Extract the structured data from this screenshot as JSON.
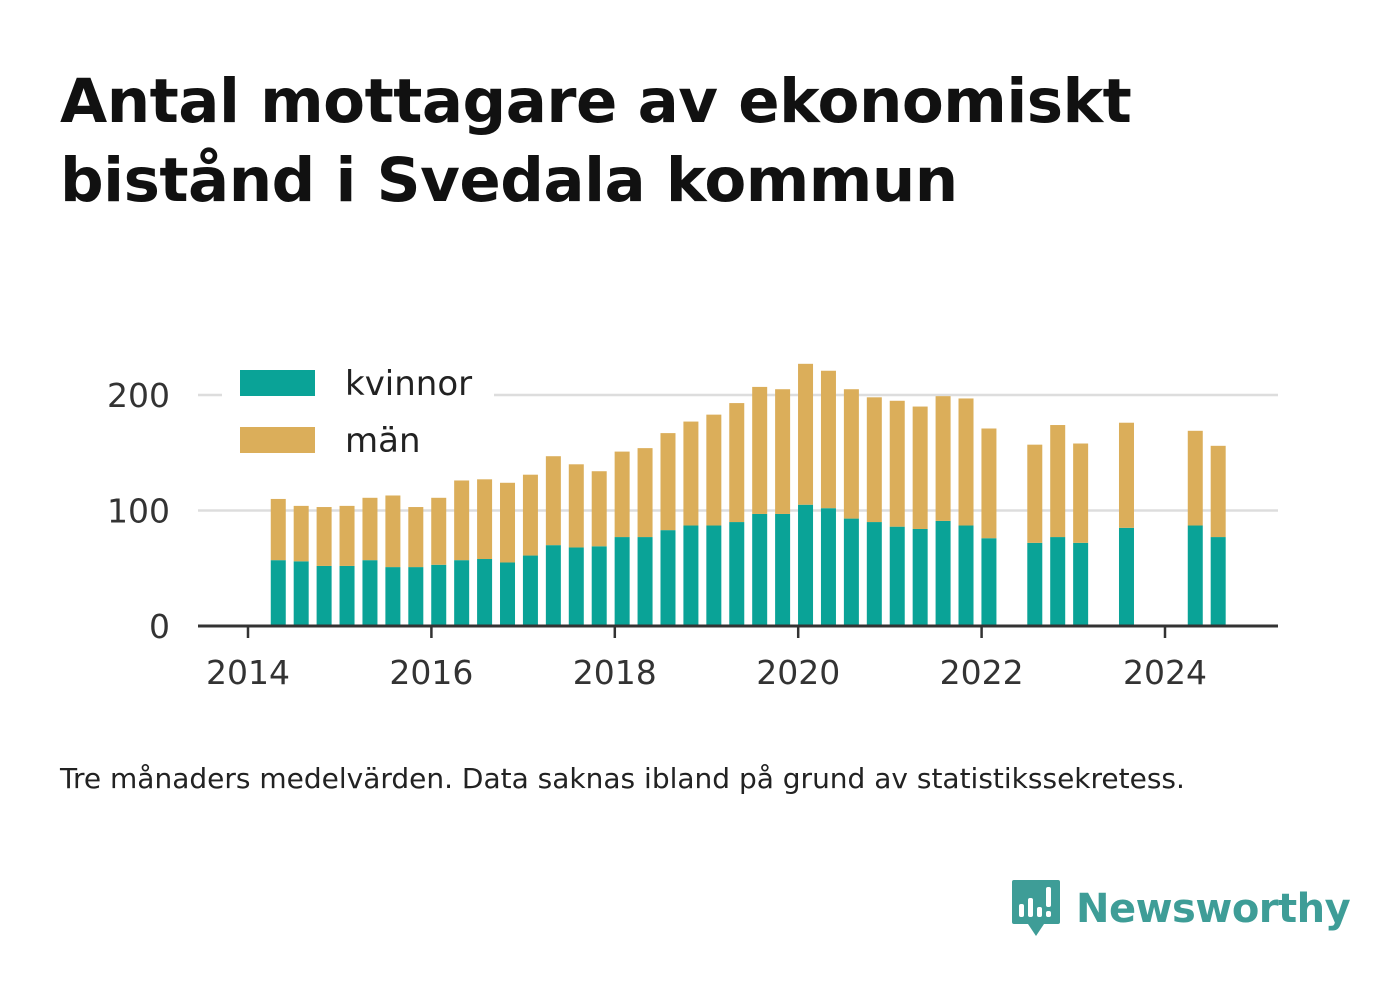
{
  "chart_data": {
    "type": "bar",
    "stacked": true,
    "title": "Antal mottagare av ekonomiskt bistånd i Svedala kommun",
    "note": "Tre månaders medelvärden. Data saknas ibland på grund av statistikssekretess.",
    "xlim": [
      2013.8,
      2025.25
    ],
    "ylim": [
      0,
      230
    ],
    "x_ticks": [
      2014,
      2016,
      2018,
      2020,
      2022,
      2024
    ],
    "y_ticks": [
      0,
      100,
      200
    ],
    "grid": true,
    "legend_position": "top-left",
    "x": [
      2014.33,
      2014.58,
      2014.83,
      2015.08,
      2015.33,
      2015.58,
      2015.83,
      2016.08,
      2016.33,
      2016.58,
      2016.83,
      2017.08,
      2017.33,
      2017.58,
      2017.83,
      2018.08,
      2018.33,
      2018.58,
      2018.83,
      2019.08,
      2019.33,
      2019.58,
      2019.83,
      2020.08,
      2020.33,
      2020.58,
      2020.83,
      2021.08,
      2021.33,
      2021.58,
      2021.83,
      2022.08,
      2022.58,
      2022.83,
      2023.08,
      2023.58,
      2024.33,
      2024.58
    ],
    "series": [
      {
        "name": "kvinnor",
        "color": "#0aa397",
        "values": [
          57,
          56,
          52,
          52,
          57,
          51,
          51,
          53,
          57,
          58,
          55,
          61,
          70,
          68,
          69,
          77,
          77,
          83,
          87,
          87,
          90,
          97,
          97,
          105,
          102,
          93,
          90,
          86,
          84,
          91,
          87,
          76,
          72,
          77,
          72,
          85,
          87,
          77
        ]
      },
      {
        "name": "män",
        "color": "#dbae5a",
        "values": [
          53,
          48,
          51,
          52,
          54,
          62,
          52,
          58,
          69,
          69,
          69,
          70,
          77,
          72,
          65,
          74,
          77,
          84,
          90,
          96,
          103,
          110,
          108,
          122,
          119,
          112,
          108,
          109,
          106,
          108,
          110,
          95,
          85,
          97,
          86,
          91,
          82,
          79
        ]
      }
    ]
  },
  "brand": {
    "name": "Newsworthy",
    "icon": "bar-chart-speech-bubble-icon",
    "color": "#3e9d97"
  }
}
